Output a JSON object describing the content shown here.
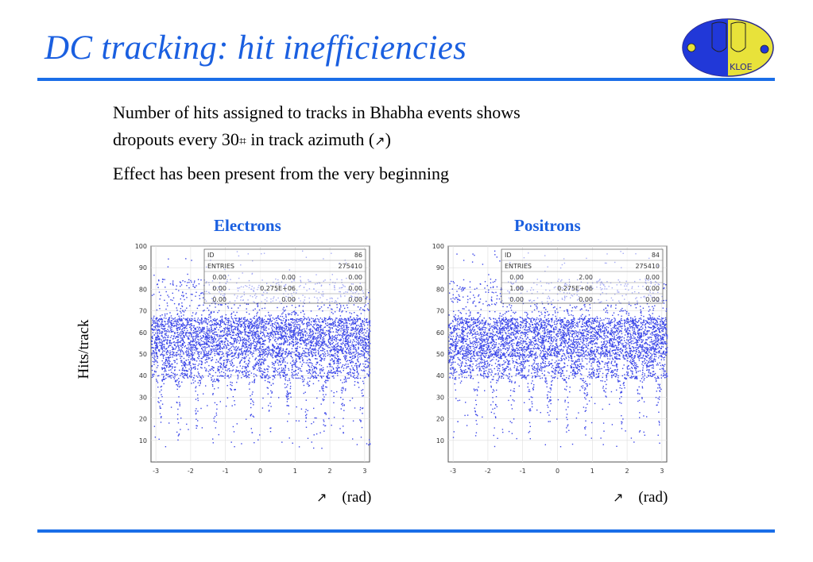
{
  "slide": {
    "title": "DC tracking: hit inefficiencies",
    "bullets": [
      "Number of hits assigned to tracks in Bhabha events shows",
      "dropouts every 30",
      "in track azimuth (",
      ")",
      "Effect has been present from the very beginning"
    ],
    "degree_glyph": "⌗",
    "phi_glyph": "↗",
    "logo_text": "KLOE"
  },
  "colors": {
    "accent": "#1a5fe0",
    "rule": "#1a6ee8",
    "points": "#3b46e8"
  },
  "chart_data": [
    {
      "type": "scatter",
      "title": "Electrons",
      "xlabel_symbol": "↗",
      "xlabel_unit": "(rad)",
      "ylabel": "Hits/track",
      "xlim": [
        -3.14,
        3.14
      ],
      "ylim": [
        0,
        100
      ],
      "xticks": [
        "-3",
        "-2",
        "-1",
        "0",
        "1",
        "2",
        "3"
      ],
      "yticks": [
        "100",
        "90",
        "80",
        "70",
        "60",
        "50",
        "40",
        "30",
        "20",
        "10"
      ],
      "dropout_period_deg": 30,
      "band_center": 58,
      "stats": {
        "id_label": "ID",
        "id_value": "86",
        "entries_label": "ENTRIES",
        "entries_value": "275410",
        "rows": [
          [
            "0.00",
            "0.00",
            "0.00"
          ],
          [
            "0.00",
            "0.275E+06",
            "0.00"
          ],
          [
            "0.00",
            "0.00",
            "0.00"
          ]
        ]
      },
      "seed": 7
    },
    {
      "type": "scatter",
      "title": "Positrons",
      "xlabel_symbol": "↗",
      "xlabel_unit": "(rad)",
      "ylabel": "",
      "xlim": [
        -3.14,
        3.14
      ],
      "ylim": [
        0,
        100
      ],
      "xticks": [
        "-3",
        "-2",
        "-1",
        "0",
        "1",
        "2",
        "3"
      ],
      "yticks": [
        "100",
        "90",
        "80",
        "70",
        "60",
        "50",
        "40",
        "30",
        "20",
        "10"
      ],
      "dropout_period_deg": 30,
      "band_center": 58,
      "stats": {
        "id_label": "ID",
        "id_value": "84",
        "entries_label": "ENTRIES",
        "entries_value": "275410",
        "rows": [
          [
            "0.00",
            "2.00",
            "0.00"
          ],
          [
            "1.00",
            "0.275E+06",
            "0.00"
          ],
          [
            "0.00",
            "0.00",
            "0.00"
          ]
        ]
      },
      "seed": 13
    }
  ]
}
